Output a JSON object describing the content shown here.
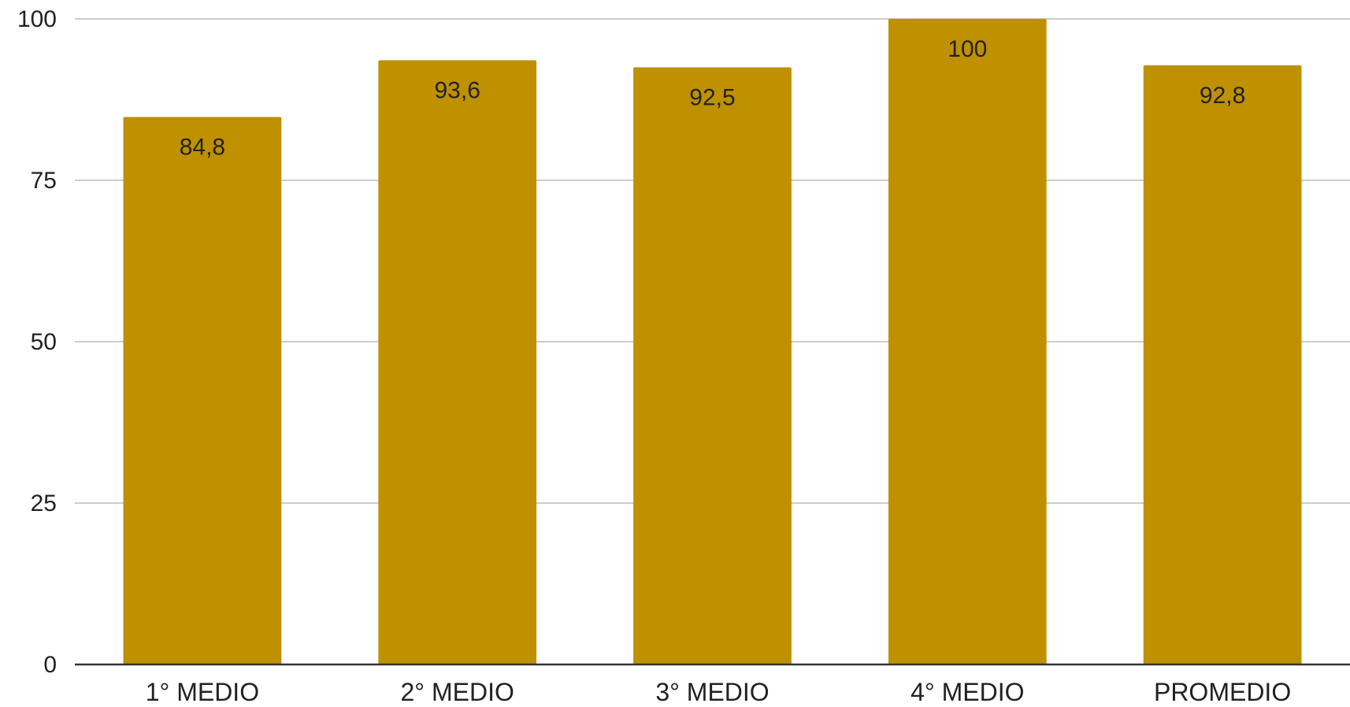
{
  "chart_data": {
    "type": "bar",
    "categories": [
      "1° MEDIO",
      "2° MEDIO",
      "3° MEDIO",
      "4° MEDIO",
      "PROMEDIO"
    ],
    "values": [
      84.8,
      93.6,
      92.5,
      100,
      92.8
    ],
    "data_labels": [
      "84,8",
      "93,6",
      "92,5",
      "100",
      "92,8"
    ],
    "yticks": [
      0,
      25,
      50,
      75,
      100
    ],
    "ylim": [
      0,
      100
    ],
    "grid": true,
    "legend": "none",
    "colors": {
      "bar": "#BF9000",
      "gridline": "#cccccc",
      "baseline": "#333333",
      "text": "#222222"
    }
  }
}
